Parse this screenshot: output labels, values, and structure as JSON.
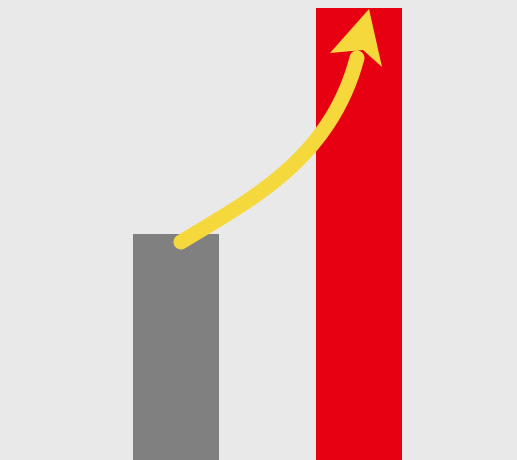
{
  "chart_data": {
    "type": "bar",
    "categories": [
      "",
      ""
    ],
    "values": [
      226,
      452
    ],
    "ylim": [
      0,
      460
    ],
    "grid": false,
    "colors": {
      "background": "#e9e9e9",
      "bars": [
        "#808080",
        "#e60012"
      ],
      "arrow": "#f5d93c"
    },
    "annotation": {
      "icon": "curved-growth-arrow-icon",
      "from_bar": 0,
      "to_bar": 1
    }
  }
}
